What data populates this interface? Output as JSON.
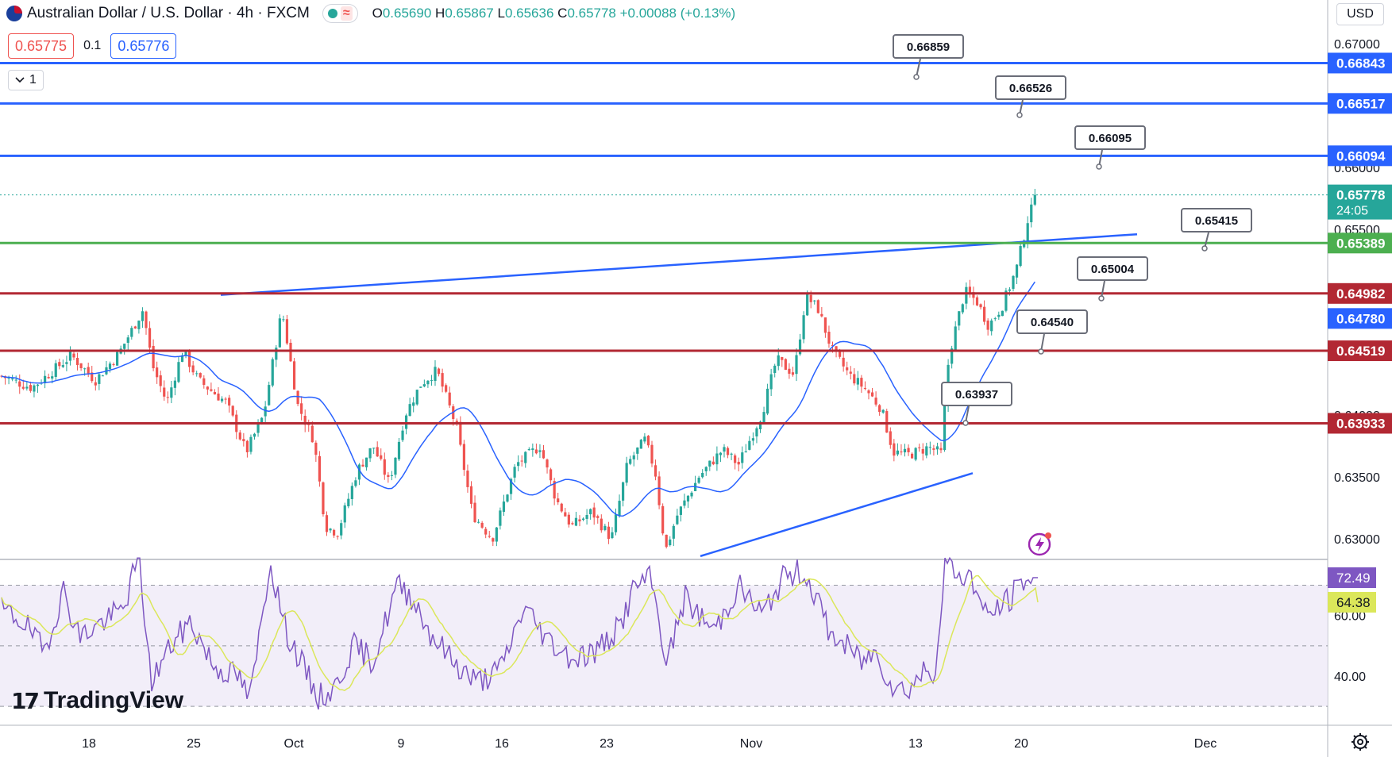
{
  "header": {
    "symbol_title": "Australian Dollar / U.S. Dollar · 4h · FXCM",
    "ohlc": {
      "o_label": "O",
      "o": "0.65690",
      "h_label": "H",
      "h": "0.65867",
      "l_label": "L",
      "l": "0.65636",
      "c_label": "C",
      "c": "0.65778",
      "change": "+0.00088 (+0.13%)"
    }
  },
  "trade": {
    "sell_price": "0.65775",
    "spread": "0.1",
    "buy_price": "0.65776"
  },
  "indicator_toggle": {
    "count": "1"
  },
  "currency": "USD",
  "logo_text": "TradingView",
  "icons": {
    "flag": "au-us-flag-icon",
    "chevron": "chevron-down-icon",
    "settings": "gear-icon",
    "alert": "lightning-alert-icon"
  },
  "colors": {
    "up": "#26a69a",
    "down": "#ef5350",
    "blue": "#2962ff",
    "green": "#4caf50",
    "red_level": "#b22833",
    "ma": "#2962ff",
    "rsi": "#7e57c2",
    "rsi_ma": "#dbe75a"
  },
  "chart_data": [
    {
      "type": "candlestick",
      "symbol": "Australian Dollar / U.S. Dollar",
      "interval": "4h",
      "y_ticks": [
        0.67,
        0.66,
        0.655,
        0.65,
        0.64,
        0.635,
        0.63
      ],
      "y_tick_labels": [
        "0.67000",
        "0.66000",
        "0.65500",
        "0.65000",
        "0.64000",
        "0.63500",
        "0.63000"
      ],
      "y_range": [
        0.6284,
        0.6716
      ],
      "x_tick_labels": [
        "18",
        "25",
        "Oct",
        "9",
        "16",
        "23",
        "Nov",
        "13",
        "20",
        "Dec"
      ],
      "horizontal_levels": [
        {
          "value": 0.66843,
          "label": "0.66843",
          "color": "blue"
        },
        {
          "value": 0.66517,
          "label": "0.66517",
          "color": "blue"
        },
        {
          "value": 0.66094,
          "label": "0.66094",
          "color": "blue"
        },
        {
          "value": 0.65389,
          "label": "0.65389",
          "color": "green"
        },
        {
          "value": 0.64982,
          "label": "0.64982",
          "color": "red"
        },
        {
          "value": 0.64519,
          "label": "0.64519",
          "color": "red"
        },
        {
          "value": 0.63933,
          "label": "0.63933",
          "color": "red"
        }
      ],
      "price_tags": [
        {
          "label": "0.65778",
          "sub": "24:05",
          "value": 0.65778,
          "color": "up"
        },
        {
          "label": "0.64780",
          "value": 0.6478,
          "color": "blue"
        }
      ],
      "callouts": [
        "0.66859",
        "0.66526",
        "0.66095",
        "0.65415",
        "0.65004",
        "0.64540",
        "0.63937"
      ],
      "trendlines": [
        "upper rising trendline",
        "lower rising trendline"
      ],
      "moving_average": "blue",
      "last_close": 0.65778
    },
    {
      "type": "line",
      "name": "RSI",
      "y_ticks": [
        60,
        40
      ],
      "y_tick_labels": [
        "60.00",
        "40.00"
      ],
      "bands": [
        30,
        50,
        70
      ],
      "value_tags": [
        {
          "label": "72.49",
          "value": 72.49
        },
        {
          "label": "64.38",
          "value": 64.38
        }
      ]
    }
  ]
}
